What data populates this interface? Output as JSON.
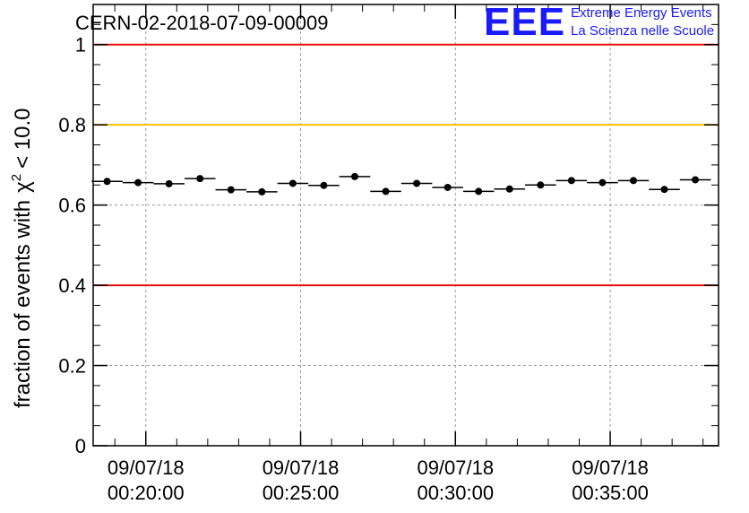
{
  "chart_data": {
    "type": "scatter",
    "title": "CERN-02-2018-07-09-00009",
    "ylabel": "fraction of events with",
    "ylabel_math": "χ",
    "ylabel_sup": "2",
    "ylabel_tail": "< 10.0",
    "ylim": [
      0,
      1.1
    ],
    "yticks": [
      {
        "value": 0,
        "label": "0"
      },
      {
        "value": 0.2,
        "label": "0.2"
      },
      {
        "value": 0.4,
        "label": "0.4"
      },
      {
        "value": 0.6,
        "label": "0.6"
      },
      {
        "value": 0.8,
        "label": "0.8"
      },
      {
        "value": 1.0,
        "label": "1"
      }
    ],
    "xlim": [
      18.3,
      38.5
    ],
    "xticks": [
      {
        "value": 20,
        "date": "09/07/18",
        "time": "00:20:00"
      },
      {
        "value": 25,
        "date": "09/07/18",
        "time": "00:25:00"
      },
      {
        "value": 30,
        "date": "09/07/18",
        "time": "00:30:00"
      },
      {
        "value": 35,
        "date": "09/07/18",
        "time": "00:35:00"
      }
    ],
    "grid": true,
    "reference_lines": [
      {
        "value": 1.0,
        "color": "#e8100e"
      },
      {
        "value": 0.8,
        "color": "#ffc000"
      },
      {
        "value": 0.4,
        "color": "#e8100e"
      }
    ],
    "series": [
      {
        "x": [
          18.75,
          19.75,
          20.75,
          21.75,
          22.75,
          23.75,
          24.75,
          25.75,
          26.75,
          27.75,
          28.75,
          29.75,
          30.75,
          31.75,
          32.75,
          33.75,
          34.75,
          35.75,
          36.75,
          37.75
        ],
        "values": [
          0.659,
          0.656,
          0.653,
          0.666,
          0.638,
          0.633,
          0.654,
          0.649,
          0.671,
          0.634,
          0.654,
          0.644,
          0.634,
          0.64,
          0.65,
          0.661,
          0.656,
          0.661,
          0.639,
          0.663
        ],
        "x_half_width": 0.5,
        "color": "#000000"
      }
    ]
  },
  "logo": {
    "letters": "EEE",
    "line1": "Extreme Energy Events",
    "line2": "La Scienza nelle Scuole",
    "color": "#1a1aff"
  }
}
